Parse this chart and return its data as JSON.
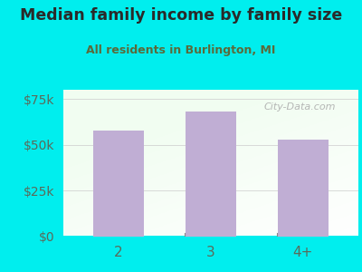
{
  "title": "Median family income by family size",
  "subtitle": "All residents in Burlington, MI",
  "categories": [
    "2",
    "3",
    "4+"
  ],
  "values": [
    58000,
    68000,
    53000
  ],
  "bar_color": "#c0aed4",
  "background_outer": "#00eeee",
  "title_color": "#2a2a2a",
  "subtitle_color": "#5a6a3a",
  "tick_color": "#5a6a5a",
  "ylim": [
    0,
    80000
  ],
  "yticks": [
    0,
    25000,
    50000,
    75000
  ],
  "ytick_labels": [
    "$0",
    "$25k",
    "$50k",
    "$75k"
  ],
  "watermark": "City-Data.com",
  "figsize": [
    4.0,
    3.0
  ],
  "dpi": 100
}
